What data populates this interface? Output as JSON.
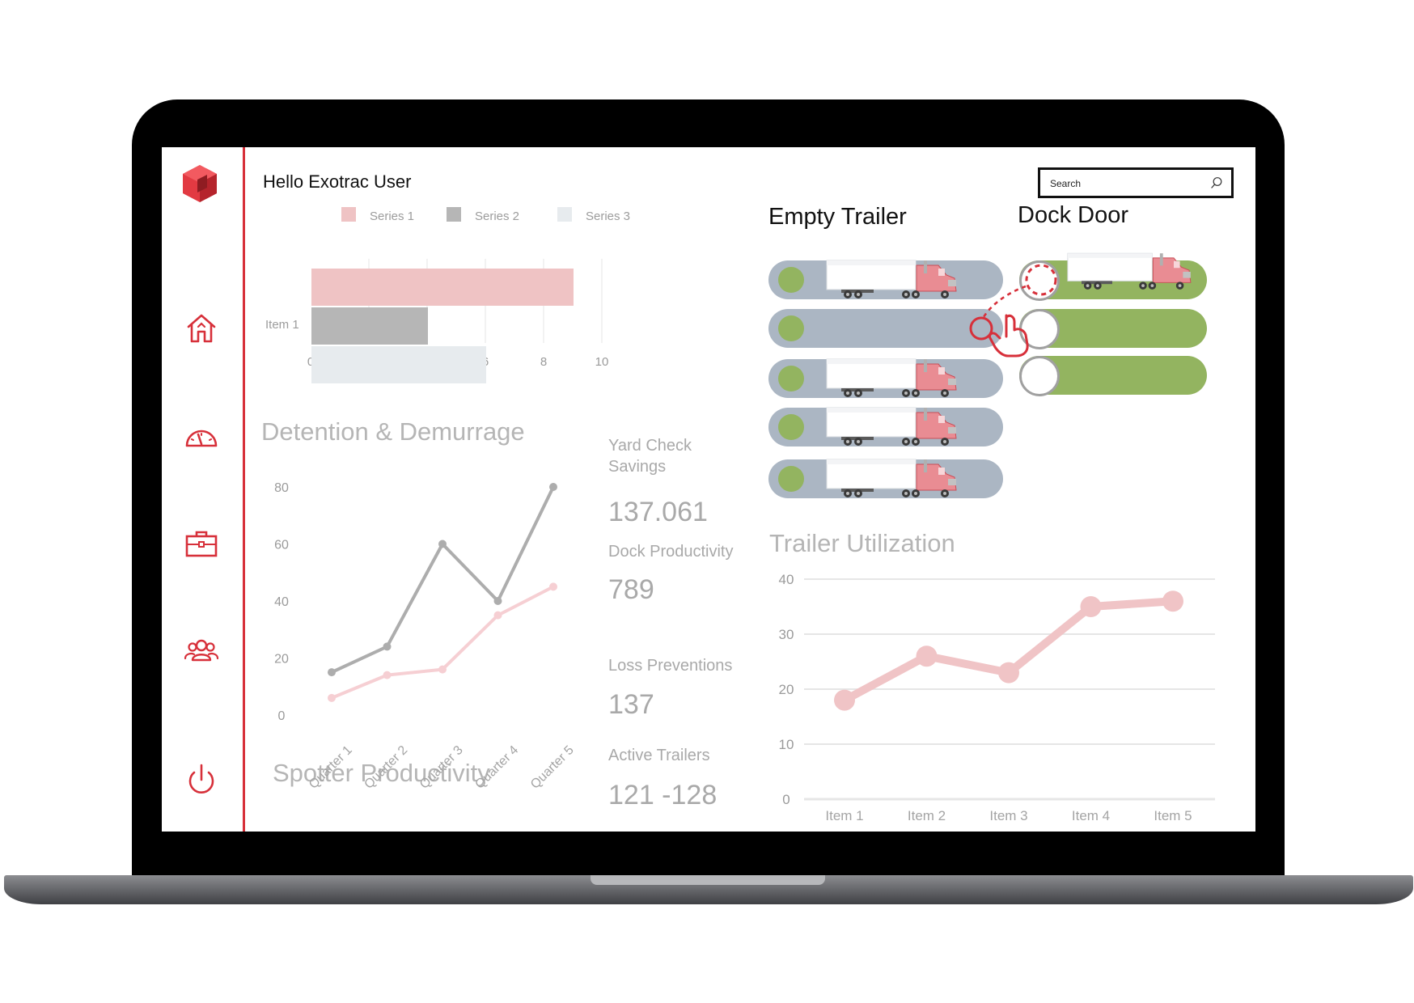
{
  "header": {
    "greeting": "Hello Exotrac User",
    "search_placeholder": "Search"
  },
  "sidebar": {
    "items": [
      {
        "icon": "home-icon"
      },
      {
        "icon": "speedometer-icon"
      },
      {
        "icon": "briefcase-icon"
      },
      {
        "icon": "users-icon"
      },
      {
        "icon": "power-icon"
      }
    ]
  },
  "colors": {
    "accent": "#d7303a",
    "pill_gray": "#abb6c3",
    "pill_green": "#93b460",
    "series1": "#efc3c4",
    "series2": "#b6b6b6",
    "series3": "#e7ebee"
  },
  "panels": {
    "empty_trailer_title": "Empty Trailer",
    "dock_door_title": "Dock Door",
    "detention_title": "Detention & Demurrage",
    "spotter_title": "Spotter Productivity",
    "trailer_util_title": "Trailer Utilization"
  },
  "empty_trailer": [
    {
      "has_trailer": true
    },
    {
      "has_trailer": false
    },
    {
      "has_trailer": true
    },
    {
      "has_trailer": true
    },
    {
      "has_trailer": true
    }
  ],
  "dock_door": [
    {
      "occupied": true
    },
    {
      "occupied": false
    },
    {
      "occupied": false
    }
  ],
  "kpis": [
    {
      "label_lines": [
        "Yard Check",
        "Savings"
      ],
      "value": "137.061"
    },
    {
      "label_lines": [
        "Dock Productivity"
      ],
      "value": "789"
    },
    {
      "label_lines": [
        "Loss Preventions"
      ],
      "value": "137"
    },
    {
      "label_lines": [
        "Active Trailers"
      ],
      "value": "121 -128"
    }
  ],
  "chart_data": [
    {
      "type": "bar",
      "orientation": "horizontal",
      "categories": [
        "Item 1"
      ],
      "series": [
        {
          "name": "Series 1",
          "values": [
            9
          ]
        },
        {
          "name": "Series 2",
          "values": [
            4
          ]
        },
        {
          "name": "Series 3",
          "values": [
            6
          ]
        }
      ],
      "xlim": [
        0,
        10
      ],
      "xticks": [
        0,
        2,
        4,
        6,
        8,
        10
      ],
      "legend": "top",
      "grid": true
    },
    {
      "type": "line",
      "categories": [
        "Quarter 1",
        "Quarter 2",
        "Quarter 3",
        "Quarter 4",
        "Quarter 5"
      ],
      "series": [
        {
          "values": [
            15,
            24,
            60,
            40,
            80
          ]
        },
        {
          "values": [
            6,
            14,
            16,
            35,
            45
          ]
        }
      ],
      "ylim": [
        0,
        80
      ],
      "yticks": [
        0,
        20,
        40,
        60,
        80
      ],
      "grid": false
    },
    {
      "type": "line",
      "categories": [
        "Item 1",
        "Item 2",
        "Item 3",
        "Item 4",
        "Item 5"
      ],
      "series": [
        {
          "values": [
            18,
            26,
            23,
            35,
            36
          ]
        }
      ],
      "ylim": [
        0,
        40
      ],
      "yticks": [
        0,
        10,
        20,
        30,
        40
      ],
      "grid": true
    }
  ]
}
